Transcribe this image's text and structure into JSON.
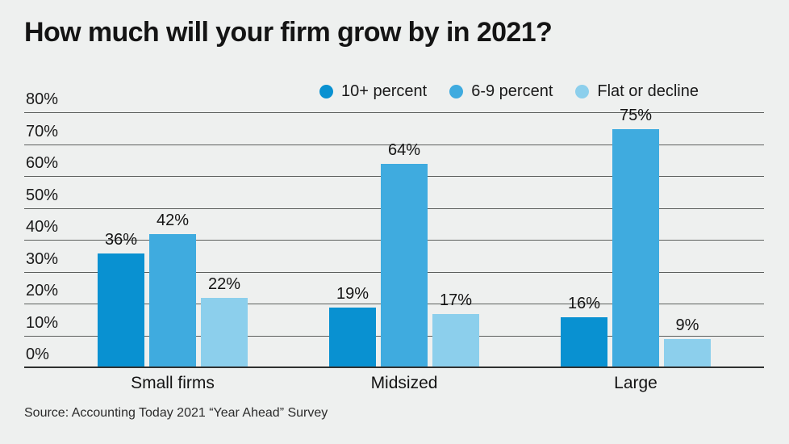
{
  "title": "How much will your firm grow by in 2021?",
  "source": "Source: Accounting Today 2021 “Year Ahead” Survey",
  "colors": {
    "background": "#eef0ef",
    "text": "#1a1a1a",
    "gridline": "#5d605e",
    "baseline": "#2f3130",
    "series1": "#0991d1",
    "series2": "#3fabdf",
    "series3": "#8ccfec"
  },
  "chart_data": {
    "type": "bar",
    "categories": [
      "Small firms",
      "Midsized",
      "Large"
    ],
    "series": [
      {
        "name": "10+ percent",
        "color": "#0991d1",
        "values": [
          36,
          19,
          16
        ]
      },
      {
        "name": "6-9 percent",
        "color": "#3fabdf",
        "values": [
          42,
          64,
          75
        ]
      },
      {
        "name": "Flat or decline",
        "color": "#8ccfec",
        "values": [
          22,
          17,
          9
        ]
      }
    ],
    "value_labels": {
      "Small firms": [
        "36%",
        "42%",
        "22%"
      ],
      "Midsized": [
        "19%",
        "64%",
        "17%"
      ],
      "Large": [
        "16%",
        "75%",
        "9%"
      ]
    },
    "yticks": [
      "0%",
      "10%",
      "20%",
      "30%",
      "40%",
      "50%",
      "60%",
      "70%",
      "80%"
    ],
    "ylim": [
      0,
      80
    ],
    "grid": true,
    "legend_position": "top-right"
  }
}
